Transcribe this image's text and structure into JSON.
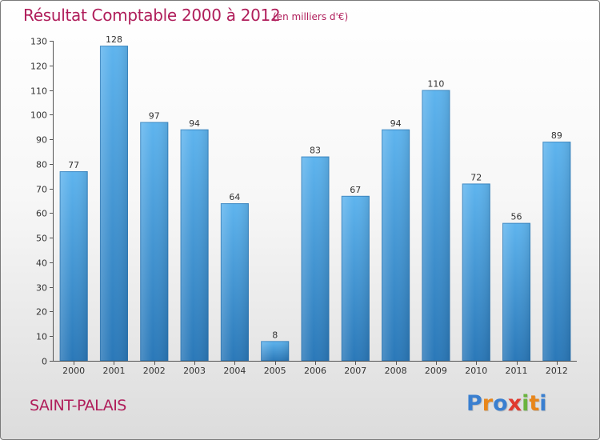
{
  "chart_data": {
    "type": "bar",
    "title": "Résultat Comptable 2000 à 2012",
    "subtitle": "(en milliers d'€)",
    "categories": [
      "2000",
      "2001",
      "2002",
      "2003",
      "2004",
      "2005",
      "2006",
      "2007",
      "2008",
      "2009",
      "2010",
      "2011",
      "2012"
    ],
    "values": [
      77,
      128,
      97,
      94,
      64,
      8,
      83,
      67,
      94,
      110,
      72,
      56,
      89
    ],
    "ylim": [
      0,
      130
    ],
    "yticks": [
      0,
      10,
      20,
      30,
      40,
      50,
      60,
      70,
      80,
      90,
      100,
      110,
      120,
      130
    ],
    "xlabel": "",
    "ylabel": "",
    "grid": false,
    "bar_color": "#3d93d6"
  },
  "place": "SAINT-PALAIS",
  "logo": {
    "text": "Proxiti",
    "letters": [
      "P",
      "r",
      "o",
      "x",
      "i",
      "t",
      "i"
    ],
    "colors": [
      "#3a7fd0",
      "#e8861a",
      "#3a7fd0",
      "#e03a2f",
      "#6ab43e",
      "#e8861a",
      "#3a7fd0"
    ]
  }
}
